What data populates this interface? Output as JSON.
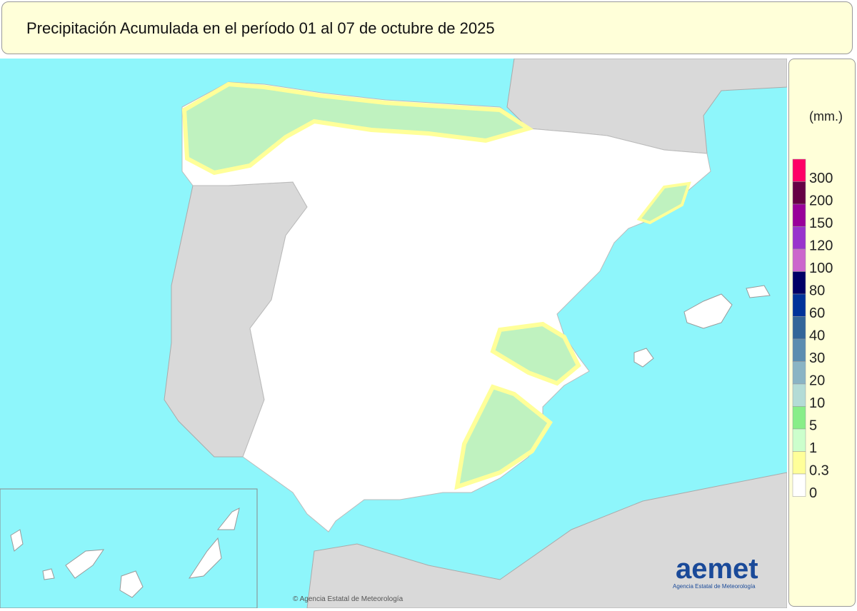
{
  "header": {
    "title": "Precipitación Acumulada en el período 01 al 07 de octubre de 2025"
  },
  "legend": {
    "unit": "(mm.)",
    "labels": [
      300,
      200,
      150,
      120,
      100,
      80,
      60,
      40,
      30,
      20,
      10,
      5,
      1,
      0.3,
      0
    ],
    "colors": [
      "#ff0066",
      "#660044",
      "#990099",
      "#9933cc",
      "#cc66cc",
      "#000066",
      "#003399",
      "#336699",
      "#5b8db0",
      "#8ab4c4",
      "#b4dcd6",
      "#88ee88",
      "#ccffcc",
      "#ffff99",
      "#ffffff"
    ]
  },
  "logo": {
    "name": "aemet",
    "subtitle": "Agencia Estatal de Meteorología"
  },
  "credit": "© Agencia Estatal de Meteorología"
}
